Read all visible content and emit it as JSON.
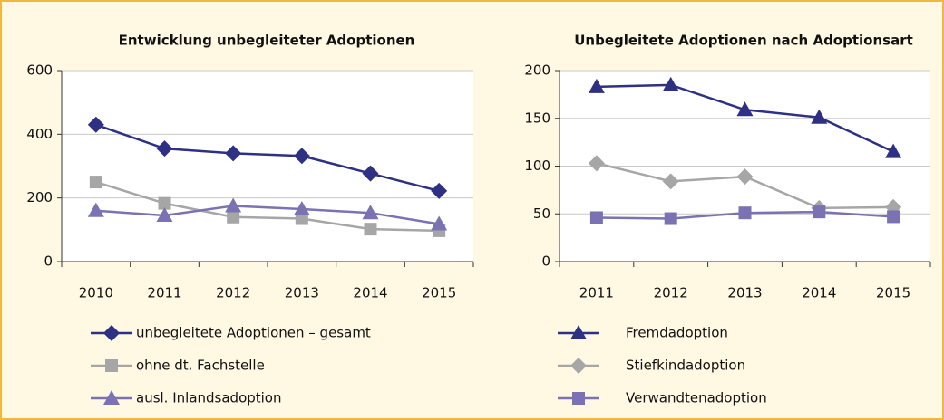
{
  "chart_data": [
    {
      "type": "line",
      "title": "Entwicklung unbegleiteter Adoptionen",
      "categories": [
        "2010",
        "2011",
        "2012",
        "2013",
        "2014",
        "2015"
      ],
      "ylim": [
        0,
        600
      ],
      "yticks": [
        0,
        200,
        400,
        600
      ],
      "grid": true,
      "series": [
        {
          "name": "unbegleitete Adoptionen – gesamt",
          "color": "#2e3083",
          "marker": "diamond",
          "values": [
            430,
            355,
            340,
            332,
            277,
            222
          ]
        },
        {
          "name": "ohne dt. Fachstelle",
          "color": "#a6a6a6",
          "marker": "square",
          "values": [
            250,
            183,
            140,
            135,
            102,
            97
          ]
        },
        {
          "name": "ausl. Inlandsadoption",
          "color": "#7b72b3",
          "marker": "triangle",
          "values": [
            160,
            145,
            175,
            165,
            153,
            118
          ]
        }
      ]
    },
    {
      "type": "line",
      "title": "Unbegleitete Adoptionen nach Adoptionsart",
      "categories": [
        "2011",
        "2012",
        "2013",
        "2014",
        "2015"
      ],
      "ylim": [
        0,
        200
      ],
      "yticks": [
        0,
        50,
        100,
        150,
        200
      ],
      "grid": true,
      "series": [
        {
          "name": "Fremdadoption",
          "color": "#2e3083",
          "marker": "triangle",
          "values": [
            183,
            185,
            159,
            151,
            115
          ]
        },
        {
          "name": "Stiefkindadoption",
          "color": "#a6a6a6",
          "marker": "diamond",
          "values": [
            103,
            84,
            89,
            56,
            57
          ]
        },
        {
          "name": "Verwandtenadoption",
          "color": "#7b72b3",
          "marker": "square",
          "values": [
            46,
            45,
            51,
            52,
            47
          ]
        }
      ]
    }
  ]
}
